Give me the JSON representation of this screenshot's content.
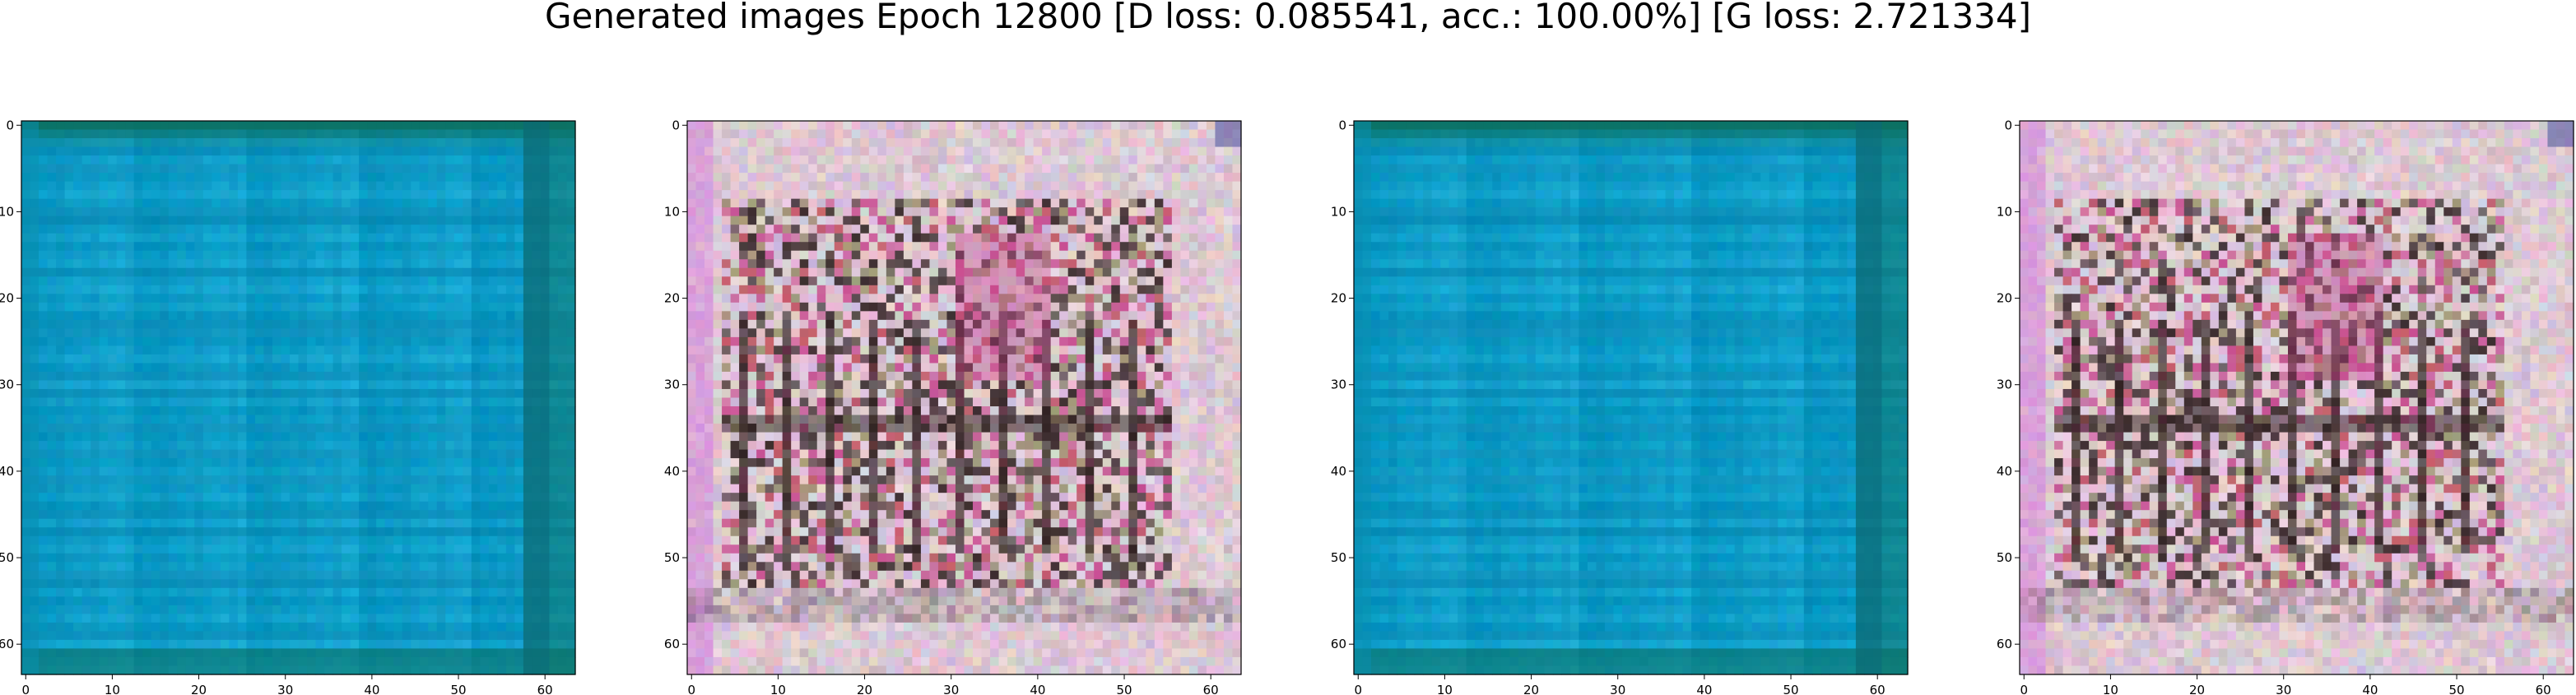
{
  "figure": {
    "title": "Generated images Epoch 12800 [D loss: 0.085541, acc.: 100.00%] [G loss: 2.721334]"
  },
  "axes_ticks": {
    "x": [
      0,
      10,
      20,
      30,
      40,
      50,
      60
    ],
    "y": [
      0,
      10,
      20,
      30,
      40,
      50,
      60
    ],
    "extent": [
      -0.5,
      63.5
    ]
  },
  "panels": [
    {
      "label": "0",
      "style": "teal",
      "palette": {
        "base": "#0e9ec9",
        "edge_top": "#0c6f5e",
        "edge_right": "#0b6a72",
        "edge_left": "#0a8fb0",
        "stripe": "#0a7ea8"
      }
    },
    {
      "label": "1",
      "style": "noisy",
      "palette": {
        "base": "#d9c3cf",
        "border": "#e4d2dc",
        "pink": "#c43a86",
        "red": "#b41c2e",
        "dark": "#2b1c1c",
        "olive": "#6d6a2a",
        "magenta": "#d57ce0"
      }
    },
    {
      "label": "2",
      "style": "teal",
      "palette": {
        "base": "#0e9ec9",
        "edge_top": "#0c6f5e",
        "edge_right": "#0b6a72",
        "edge_left": "#0a8fb0",
        "stripe": "#0a7ea8"
      }
    },
    {
      "label": "3",
      "style": "noisy",
      "palette": {
        "base": "#d9c3cf",
        "border": "#e4d2dc",
        "pink": "#c43a86",
        "red": "#b41c2e",
        "dark": "#2b1c1c",
        "olive": "#6d6a2a",
        "magenta": "#d57ce0"
      }
    }
  ]
}
